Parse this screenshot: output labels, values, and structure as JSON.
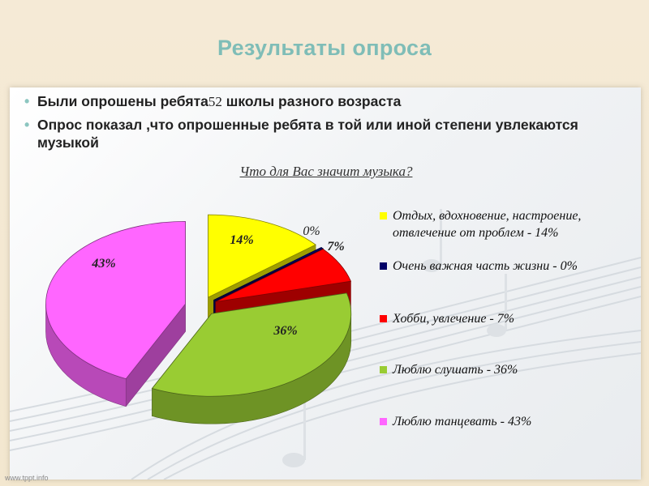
{
  "slide": {
    "title": "Результаты опроса",
    "bullets": [
      {
        "pre": "Были опрошены ребята",
        "num": "52",
        "post": " школы разного возраста"
      },
      {
        "pre": "Опрос показал ,что опрошенные  ребята в той или иной степени увлекаются музыкой",
        "num": "",
        "post": ""
      }
    ],
    "footer": "www.tppt.info"
  },
  "chart_data": {
    "type": "pie",
    "title": "Что для Вас значит музыка?",
    "legend_position": "right",
    "slices": [
      {
        "label": "Отдых, вдохновение, настроение, отвлечение от проблем - 14%",
        "value": 14,
        "data_label": "14%",
        "color": "#ffff00"
      },
      {
        "label": "Очень важная часть жизни - 0%",
        "value": 0,
        "data_label": "0%",
        "color": "#000066"
      },
      {
        "label": "Хобби, увлечение - 7%",
        "value": 7,
        "data_label": "7%",
        "color": "#ff0000"
      },
      {
        "label": "Люблю слушать - 36%",
        "value": 36,
        "data_label": "36%",
        "color": "#99cc33"
      },
      {
        "label": "Люблю танцевать - 43%",
        "value": 43,
        "data_label": "43%",
        "color": "#ff66ff"
      }
    ]
  }
}
